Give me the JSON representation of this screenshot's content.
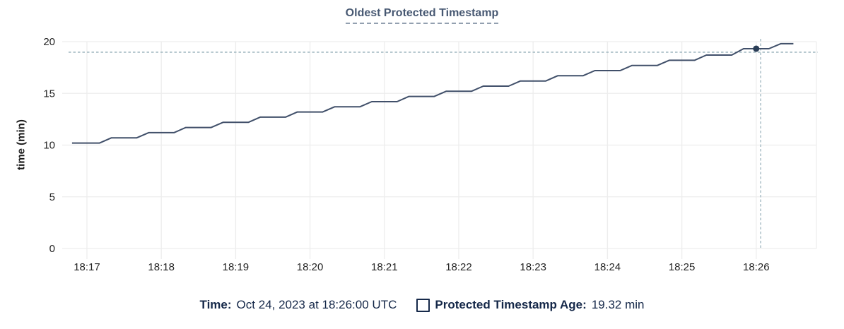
{
  "chart": {
    "title": "Oldest Protected Timestamp",
    "ylabel": "time (min)"
  },
  "tooltip": {
    "time_label": "Time:",
    "time_value": "Oct 24, 2023 at 18:26:00 UTC",
    "series_label": "Protected Timestamp Age:",
    "series_value": "19.32 min"
  },
  "colors": {
    "line": "#41506a",
    "dot": "#2b3e57",
    "crosshair": "#a3b9c2",
    "grid": "#ededed",
    "title_text": "#475872",
    "title_underline": "#93a0b0",
    "legend_text": "#152849",
    "tick_text": "#242424"
  },
  "chart_data": {
    "type": "line",
    "title": "Oldest Protected Timestamp",
    "xlabel": "",
    "ylabel": "time (min)",
    "ylim": [
      0,
      20
    ],
    "yticks": [
      0,
      5,
      10,
      15,
      20
    ],
    "x_unit": "minutes since 18:17 UTC",
    "xlim": [
      -0.247,
      9.81
    ],
    "xtick_positions": [
      0,
      1,
      2,
      3,
      4,
      5,
      6,
      7,
      8,
      9
    ],
    "xtick_labels": [
      "18:17",
      "18:18",
      "18:19",
      "18:20",
      "18:21",
      "18:22",
      "18:23",
      "18:24",
      "18:25",
      "18:26"
    ],
    "grid": true,
    "legend_position": "bottom",
    "series": [
      {
        "name": "Protected Timestamp Age",
        "points": [
          [
            -0.2,
            10.2
          ],
          [
            0.17,
            10.2
          ],
          [
            0.33,
            10.7
          ],
          [
            0.67,
            10.7
          ],
          [
            0.83,
            11.2
          ],
          [
            1.17,
            11.2
          ],
          [
            1.33,
            11.7
          ],
          [
            1.67,
            11.7
          ],
          [
            1.83,
            12.2
          ],
          [
            2.17,
            12.2
          ],
          [
            2.33,
            12.7
          ],
          [
            2.67,
            12.7
          ],
          [
            2.83,
            13.2
          ],
          [
            3.17,
            13.2
          ],
          [
            3.33,
            13.7
          ],
          [
            3.67,
            13.7
          ],
          [
            3.83,
            14.2
          ],
          [
            4.17,
            14.2
          ],
          [
            4.33,
            14.7
          ],
          [
            4.67,
            14.7
          ],
          [
            4.83,
            15.2
          ],
          [
            5.17,
            15.2
          ],
          [
            5.33,
            15.7
          ],
          [
            5.67,
            15.7
          ],
          [
            5.83,
            16.2
          ],
          [
            6.17,
            16.2
          ],
          [
            6.33,
            16.7
          ],
          [
            6.67,
            16.7
          ],
          [
            6.83,
            17.2
          ],
          [
            7.17,
            17.2
          ],
          [
            7.33,
            17.7
          ],
          [
            7.67,
            17.7
          ],
          [
            7.83,
            18.2
          ],
          [
            8.17,
            18.2
          ],
          [
            8.33,
            18.7
          ],
          [
            8.67,
            18.7
          ],
          [
            8.83,
            19.32
          ],
          [
            9.17,
            19.32
          ],
          [
            9.33,
            19.8
          ],
          [
            9.5,
            19.8
          ]
        ]
      }
    ],
    "hover_point": {
      "x": 9.0,
      "y": 19.32,
      "time": "Oct 24, 2023 at 18:26:00 UTC",
      "value_label": "19.32 min"
    },
    "crosshair": {
      "x": 9.06,
      "y": 18.98
    }
  }
}
